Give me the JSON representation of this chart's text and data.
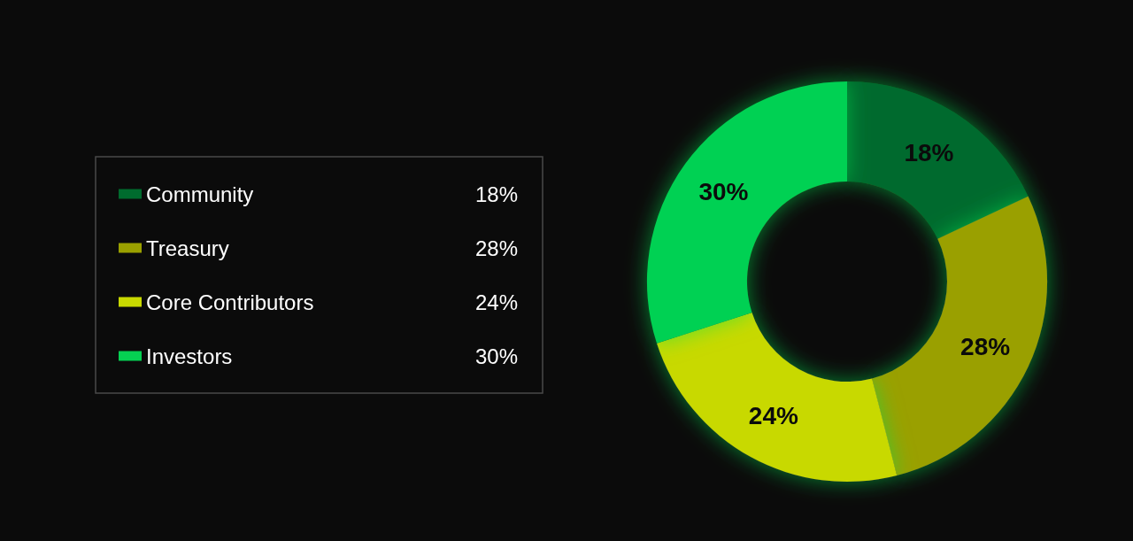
{
  "chart_data": {
    "type": "donut",
    "categories": [
      "Community",
      "Treasury",
      "Core Contributors",
      "Investors"
    ],
    "values": [
      18,
      28,
      24,
      30
    ],
    "colors": [
      "#006b2e",
      "#9aa000",
      "#c8d900",
      "#05d152"
    ],
    "value_labels": [
      "18%",
      "28%",
      "24%",
      "30%"
    ],
    "legend": "left"
  }
}
